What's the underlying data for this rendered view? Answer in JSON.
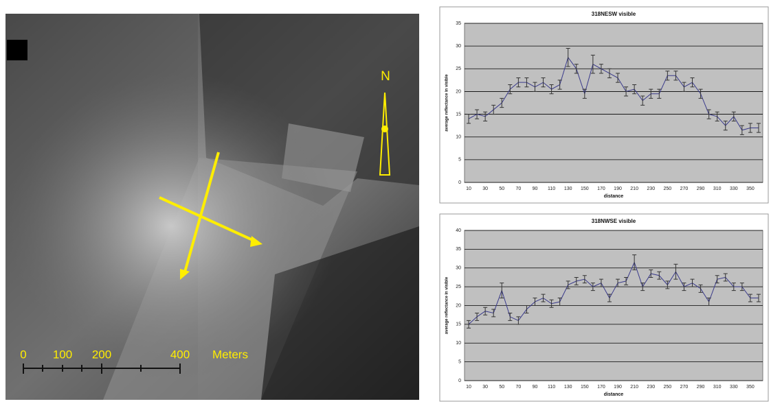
{
  "map_overlay": {
    "north_label": "N",
    "scale_labels": [
      0,
      100,
      200,
      400
    ],
    "scale_unit": "Meters"
  },
  "chart_data": [
    {
      "type": "line",
      "title": "318NESW visible",
      "x_label": "distance",
      "y_label": "average reflectance in visible",
      "categories": [
        "10",
        null,
        "30",
        null,
        "50",
        null,
        "70",
        null,
        "90",
        null,
        "110",
        null,
        "130",
        null,
        "150",
        null,
        "170",
        null,
        "190",
        null,
        "210",
        null,
        "230",
        null,
        "250",
        null,
        "270",
        null,
        "290",
        null,
        "310",
        null,
        "330",
        null,
        "350",
        null
      ],
      "series": [
        {
          "color": "#3a3a8c",
          "values": [
            14,
            15,
            14.5,
            16,
            17.5,
            20.5,
            22,
            22,
            21,
            22,
            20.5,
            21.5,
            27.5,
            25,
            19.5,
            26,
            25,
            24,
            23,
            20,
            20.5,
            18,
            19.5,
            19.5,
            23.5,
            23.5,
            21,
            22,
            19.5,
            15,
            14.5,
            12.5,
            14.5,
            11.5,
            12,
            12
          ],
          "errors": [
            1,
            1,
            1,
            1,
            1,
            1,
            1,
            1,
            1,
            1,
            1,
            1,
            2,
            1,
            1,
            2,
            1,
            1,
            1,
            1,
            1,
            1,
            1,
            1,
            1,
            1,
            1,
            1,
            1,
            1,
            1,
            1,
            1,
            1,
            1,
            1
          ]
        }
      ],
      "ylim": [
        0,
        35
      ],
      "yticks": [
        0,
        5,
        10,
        15,
        20,
        25,
        30,
        35
      ],
      "grid": true
    },
    {
      "type": "line",
      "title": "318NWSE visible",
      "x_label": "distance",
      "y_label": "average reflectance in visible",
      "categories": [
        "10",
        null,
        "30",
        null,
        "50",
        null,
        "70",
        null,
        "90",
        null,
        "110",
        null,
        "130",
        null,
        "150",
        null,
        "170",
        null,
        "190",
        null,
        "210",
        null,
        "230",
        null,
        "250",
        null,
        "270",
        null,
        "290",
        null,
        "310",
        null,
        "330",
        null,
        "350",
        null
      ],
      "series": [
        {
          "color": "#3a3a8c",
          "values": [
            15,
            17,
            18.5,
            18,
            24,
            17,
            16,
            19,
            21,
            22,
            20.5,
            21,
            25.5,
            26.5,
            27,
            25,
            26,
            22,
            26,
            26.5,
            31.5,
            25,
            28.5,
            28,
            25.5,
            29,
            25,
            26,
            24.5,
            21,
            27,
            27.5,
            25,
            25,
            22,
            22
          ],
          "errors": [
            1,
            1,
            1,
            1,
            2,
            1,
            1,
            1,
            1,
            1,
            1,
            1,
            1,
            1,
            1,
            1,
            1,
            1,
            1,
            1,
            2,
            1,
            1,
            1,
            1,
            2,
            1,
            1,
            1,
            1,
            1,
            1,
            1,
            1,
            1,
            1
          ]
        }
      ],
      "ylim": [
        0,
        40
      ],
      "yticks": [
        0,
        5,
        10,
        15,
        20,
        25,
        30,
        35,
        40
      ],
      "grid": true
    }
  ]
}
